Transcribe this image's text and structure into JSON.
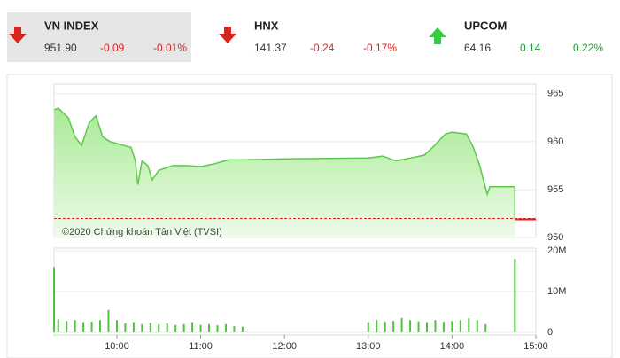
{
  "header": {
    "indices": [
      {
        "name": "VN INDEX",
        "value": "951.90",
        "change": "-0.09",
        "change_pct": "-0.01%",
        "direction": "down",
        "selected": true
      },
      {
        "name": "HNX",
        "value": "141.37",
        "change": "-0.24",
        "change_pct": "-0.17%",
        "direction": "down",
        "selected": false
      },
      {
        "name": "UPCOM",
        "value": "64.16",
        "change": "0.14",
        "change_pct": "0.22%",
        "direction": "up",
        "selected": false
      }
    ]
  },
  "chart_data": {
    "type": "line",
    "credit": "©2020 Chứng khoán Tân Việt (TVSI)",
    "x": [
      9.25,
      9.3,
      9.42,
      9.5,
      9.58,
      9.67,
      9.75,
      9.83,
      9.92,
      10,
      10.17,
      10.22,
      10.25,
      10.3,
      10.37,
      10.42,
      10.5,
      10.67,
      10.83,
      11,
      11.17,
      11.33,
      11.5,
      12,
      13,
      13.17,
      13.33,
      13.5,
      13.67,
      13.78,
      13.92,
      14,
      14.17,
      14.25,
      14.33,
      14.42,
      14.45,
      14.5,
      14.75,
      14.75
    ],
    "series": [
      {
        "color": "#5cc94a",
        "values": [
          963.3,
          963.5,
          962.5,
          960.5,
          959.6,
          962,
          962.7,
          960.5,
          960,
          959.8,
          959.4,
          958,
          955.5,
          958,
          957.5,
          956,
          957,
          957.5,
          957.5,
          957.4,
          957.7,
          958.1,
          958.1,
          958.2,
          958.3,
          958.5,
          958,
          958.3,
          958.6,
          959.5,
          960.8,
          961,
          960.8,
          959.5,
          957.5,
          954.5,
          955.3,
          955.3,
          955.3,
          951.9
        ]
      }
    ],
    "reference": 951.99,
    "reference_color": "#d9251d",
    "xlim": [
      9.25,
      15
    ],
    "xticks": [
      {
        "value": 10,
        "label": "10:00"
      },
      {
        "value": 11,
        "label": "11:00"
      },
      {
        "value": 12,
        "label": "12:00"
      },
      {
        "value": 13,
        "label": "13:00"
      },
      {
        "value": 14,
        "label": "14:00"
      },
      {
        "value": 15,
        "label": "15:00"
      }
    ],
    "ylim": [
      950,
      966
    ],
    "yticks": [
      950,
      955,
      960,
      965
    ],
    "grid": true,
    "volume": {
      "type": "bar",
      "color": "#4cc43a",
      "x": [
        9.25,
        9.3,
        9.4,
        9.5,
        9.6,
        9.7,
        9.8,
        9.9,
        10,
        10.1,
        10.2,
        10.3,
        10.4,
        10.5,
        10.6,
        10.7,
        10.8,
        10.9,
        11,
        11.1,
        11.2,
        11.3,
        11.4,
        11.5,
        13,
        13.1,
        13.2,
        13.3,
        13.4,
        13.5,
        13.6,
        13.7,
        13.8,
        13.9,
        14,
        14.1,
        14.2,
        14.3,
        14.4,
        14.75
      ],
      "values": [
        16000000,
        3200000,
        2800000,
        3000000,
        2500000,
        2600000,
        3000000,
        5500000,
        3000000,
        2200000,
        2500000,
        2000000,
        2300000,
        2000000,
        2200000,
        1800000,
        2000000,
        2500000,
        1800000,
        2000000,
        1700000,
        2000000,
        1500000,
        1400000,
        2500000,
        3000000,
        2600000,
        2800000,
        3500000,
        3000000,
        2700000,
        2500000,
        3000000,
        2600000,
        2800000,
        3000000,
        3400000,
        3000000,
        2000000,
        18000000
      ],
      "ylim": [
        0,
        20000000
      ],
      "yticks": [
        0,
        {
          "value": 10000000,
          "label": "10M"
        },
        {
          "value": 20000000,
          "label": "20M"
        }
      ]
    }
  }
}
